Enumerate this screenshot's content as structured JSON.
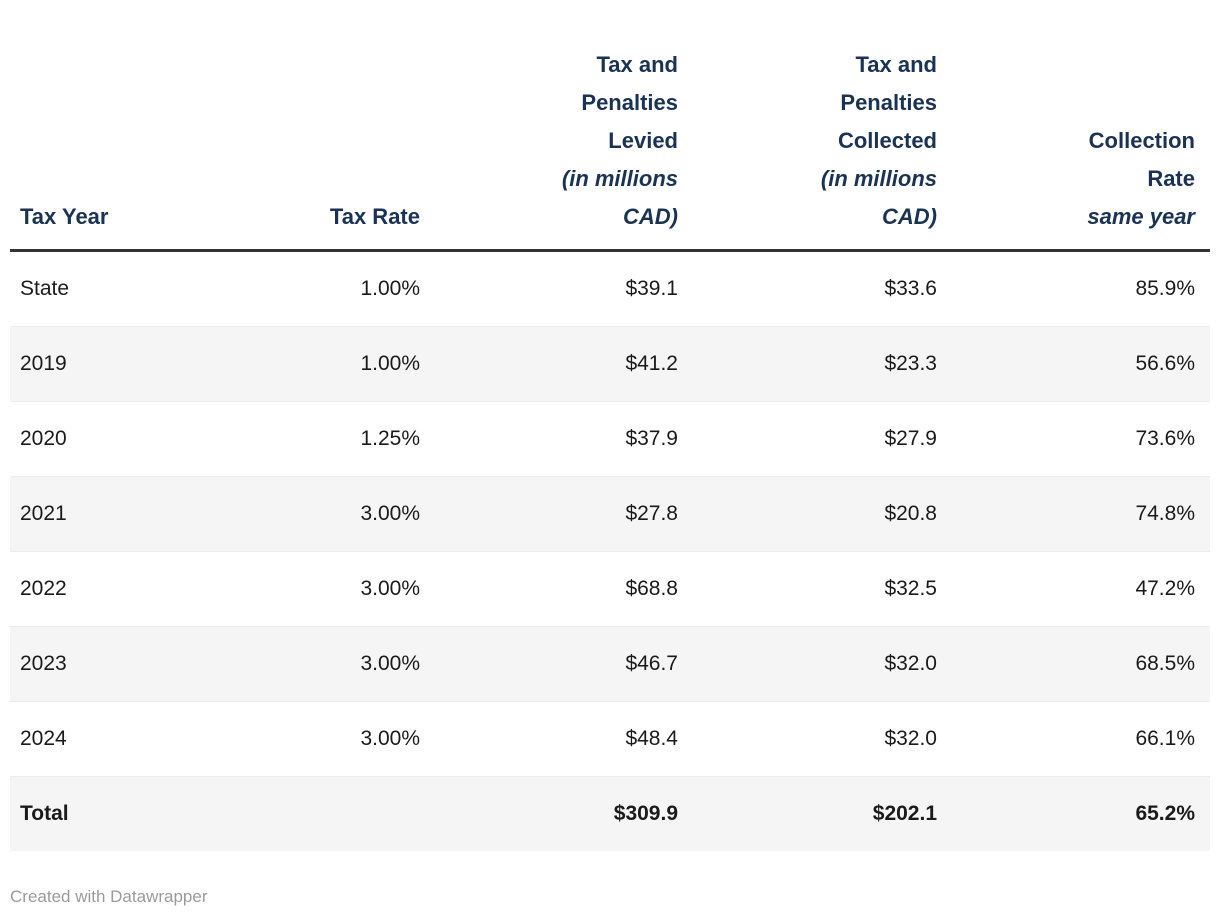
{
  "chart_data": {
    "type": "table",
    "columns": [
      {
        "id": "tax_year",
        "label_lines": [
          "Tax Year"
        ],
        "align": "left"
      },
      {
        "id": "tax_rate",
        "label_lines": [
          "Tax Rate"
        ],
        "align": "right"
      },
      {
        "id": "levied",
        "label_lines": [
          "Tax and",
          "Penalties",
          "Levied"
        ],
        "note_lines": [
          "(in millions",
          "CAD)"
        ],
        "align": "right"
      },
      {
        "id": "collected",
        "label_lines": [
          "Tax and",
          "Penalties",
          "Collected"
        ],
        "note_lines": [
          "(in millions",
          "CAD)"
        ],
        "align": "right"
      },
      {
        "id": "collection_rate",
        "label_lines": [
          "Collection",
          "Rate"
        ],
        "note_lines": [
          "same year"
        ],
        "align": "right"
      }
    ],
    "rows": [
      [
        "State",
        "1.00%",
        "$39.1",
        "$33.6",
        "85.9%"
      ],
      [
        "2019",
        "1.00%",
        "$41.2",
        "$23.3",
        "56.6%"
      ],
      [
        "2020",
        "1.25%",
        "$37.9",
        "$27.9",
        "73.6%"
      ],
      [
        "2021",
        "3.00%",
        "$27.8",
        "$20.8",
        "74.8%"
      ],
      [
        "2022",
        "3.00%",
        "$68.8",
        "$32.5",
        "47.2%"
      ],
      [
        "2023",
        "3.00%",
        "$46.7",
        "$32.0",
        "68.5%"
      ],
      [
        "2024",
        "3.00%",
        "$48.4",
        "$32.0",
        "66.1%"
      ]
    ],
    "total_row": [
      "Total",
      "",
      "$309.9",
      "$202.1",
      "65.2%"
    ],
    "layout": {
      "stripes": "alternating",
      "striped_rows": "even",
      "header_rule": true,
      "grid": false
    }
  },
  "colors": {
    "header_text": "#1a3254",
    "body_text": "#1a1a1a",
    "stripe": "#f5f5f5",
    "header_rule": "#333333",
    "row_separator": "#ececec",
    "attribution_text": "#9b9b9b"
  },
  "footer": {
    "attribution": "Created with Datawrapper"
  }
}
